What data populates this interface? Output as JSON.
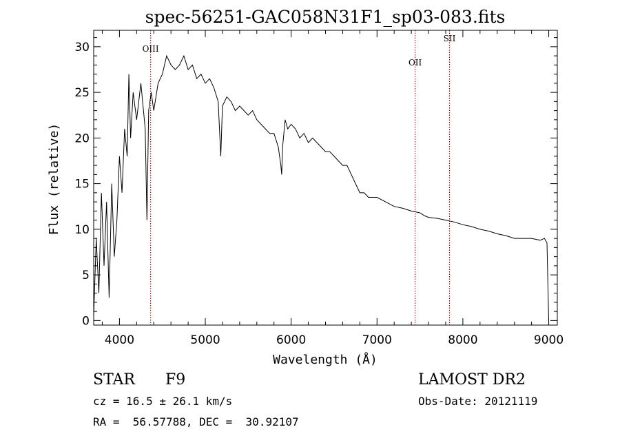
{
  "chart_data": {
    "type": "line",
    "title": "spec-56251-GAC058N31F1_sp03-083.fits",
    "xlabel": "Wavelength (Å)",
    "ylabel": "Flux (relative)",
    "xlim": [
      3700,
      9100
    ],
    "ylim": [
      -0.5,
      31.8
    ],
    "x_ticks": [
      4000,
      5000,
      6000,
      7000,
      8000,
      9000
    ],
    "y_ticks": [
      0,
      5,
      10,
      15,
      20,
      25,
      30
    ],
    "grid": false,
    "series": [
      {
        "x": [
          3700,
          3730,
          3760,
          3790,
          3820,
          3850,
          3880,
          3910,
          3940,
          3970,
          4000,
          4030,
          4060,
          4090,
          4110,
          4130,
          4160,
          4200,
          4250,
          4300,
          4320,
          4340,
          4370,
          4400,
          4450,
          4500,
          4550,
          4600,
          4650,
          4700,
          4750,
          4800,
          4850,
          4900,
          4950,
          5000,
          5050,
          5100,
          5150,
          5180,
          5200,
          5250,
          5300,
          5350,
          5400,
          5450,
          5500,
          5550,
          5600,
          5650,
          5700,
          5750,
          5800,
          5850,
          5880,
          5890,
          5900,
          5930,
          5960,
          6000,
          6050,
          6100,
          6150,
          6200,
          6250,
          6300,
          6350,
          6400,
          6450,
          6500,
          6550,
          6600,
          6650,
          6700,
          6750,
          6800,
          6850,
          6900,
          7000,
          7100,
          7200,
          7300,
          7400,
          7500,
          7550,
          7600,
          7700,
          7800,
          7900,
          8000,
          8100,
          8200,
          8300,
          8400,
          8500,
          8600,
          8700,
          8800,
          8900,
          8950,
          8980,
          9000
        ],
        "y": [
          0.5,
          9,
          3,
          14,
          6,
          13,
          2.5,
          15,
          7,
          11,
          18,
          14,
          21,
          18,
          27,
          20,
          25,
          22,
          26,
          21,
          11,
          23,
          25,
          23,
          26,
          27,
          29,
          28,
          27.5,
          28,
          29,
          27.5,
          28,
          26.5,
          27,
          26,
          26.5,
          25.5,
          24,
          18,
          23.5,
          24.5,
          24,
          23,
          23.5,
          23,
          22.5,
          23,
          22,
          21.5,
          21,
          20.5,
          20.5,
          19,
          17,
          16,
          19,
          22,
          21,
          21.5,
          21,
          20,
          20.5,
          19.5,
          20,
          19.5,
          19,
          18.5,
          18.5,
          18,
          17.5,
          17,
          17,
          16,
          15,
          14,
          14,
          13.5,
          13.5,
          13,
          12.5,
          12.3,
          12,
          11.8,
          11.5,
          11.3,
          11.2,
          11,
          10.8,
          10.5,
          10.3,
          10,
          9.8,
          9.5,
          9.3,
          9,
          9,
          9,
          8.8,
          9,
          8.5,
          0
        ]
      }
    ],
    "lines": [
      {
        "name": "OIII",
        "x": 4363
      },
      {
        "name": "OII",
        "x": 7444
      },
      {
        "name": "SII",
        "x": 7844
      }
    ]
  },
  "info": {
    "object_class": "STAR",
    "subclass": "F9",
    "survey": "LAMOST DR2",
    "redshift": "cz = 16.5 ± 26.1 km/s",
    "obs_date": "Obs-Date: 20121119",
    "coords": "RA =  56.57788, DEC =  30.92107"
  }
}
